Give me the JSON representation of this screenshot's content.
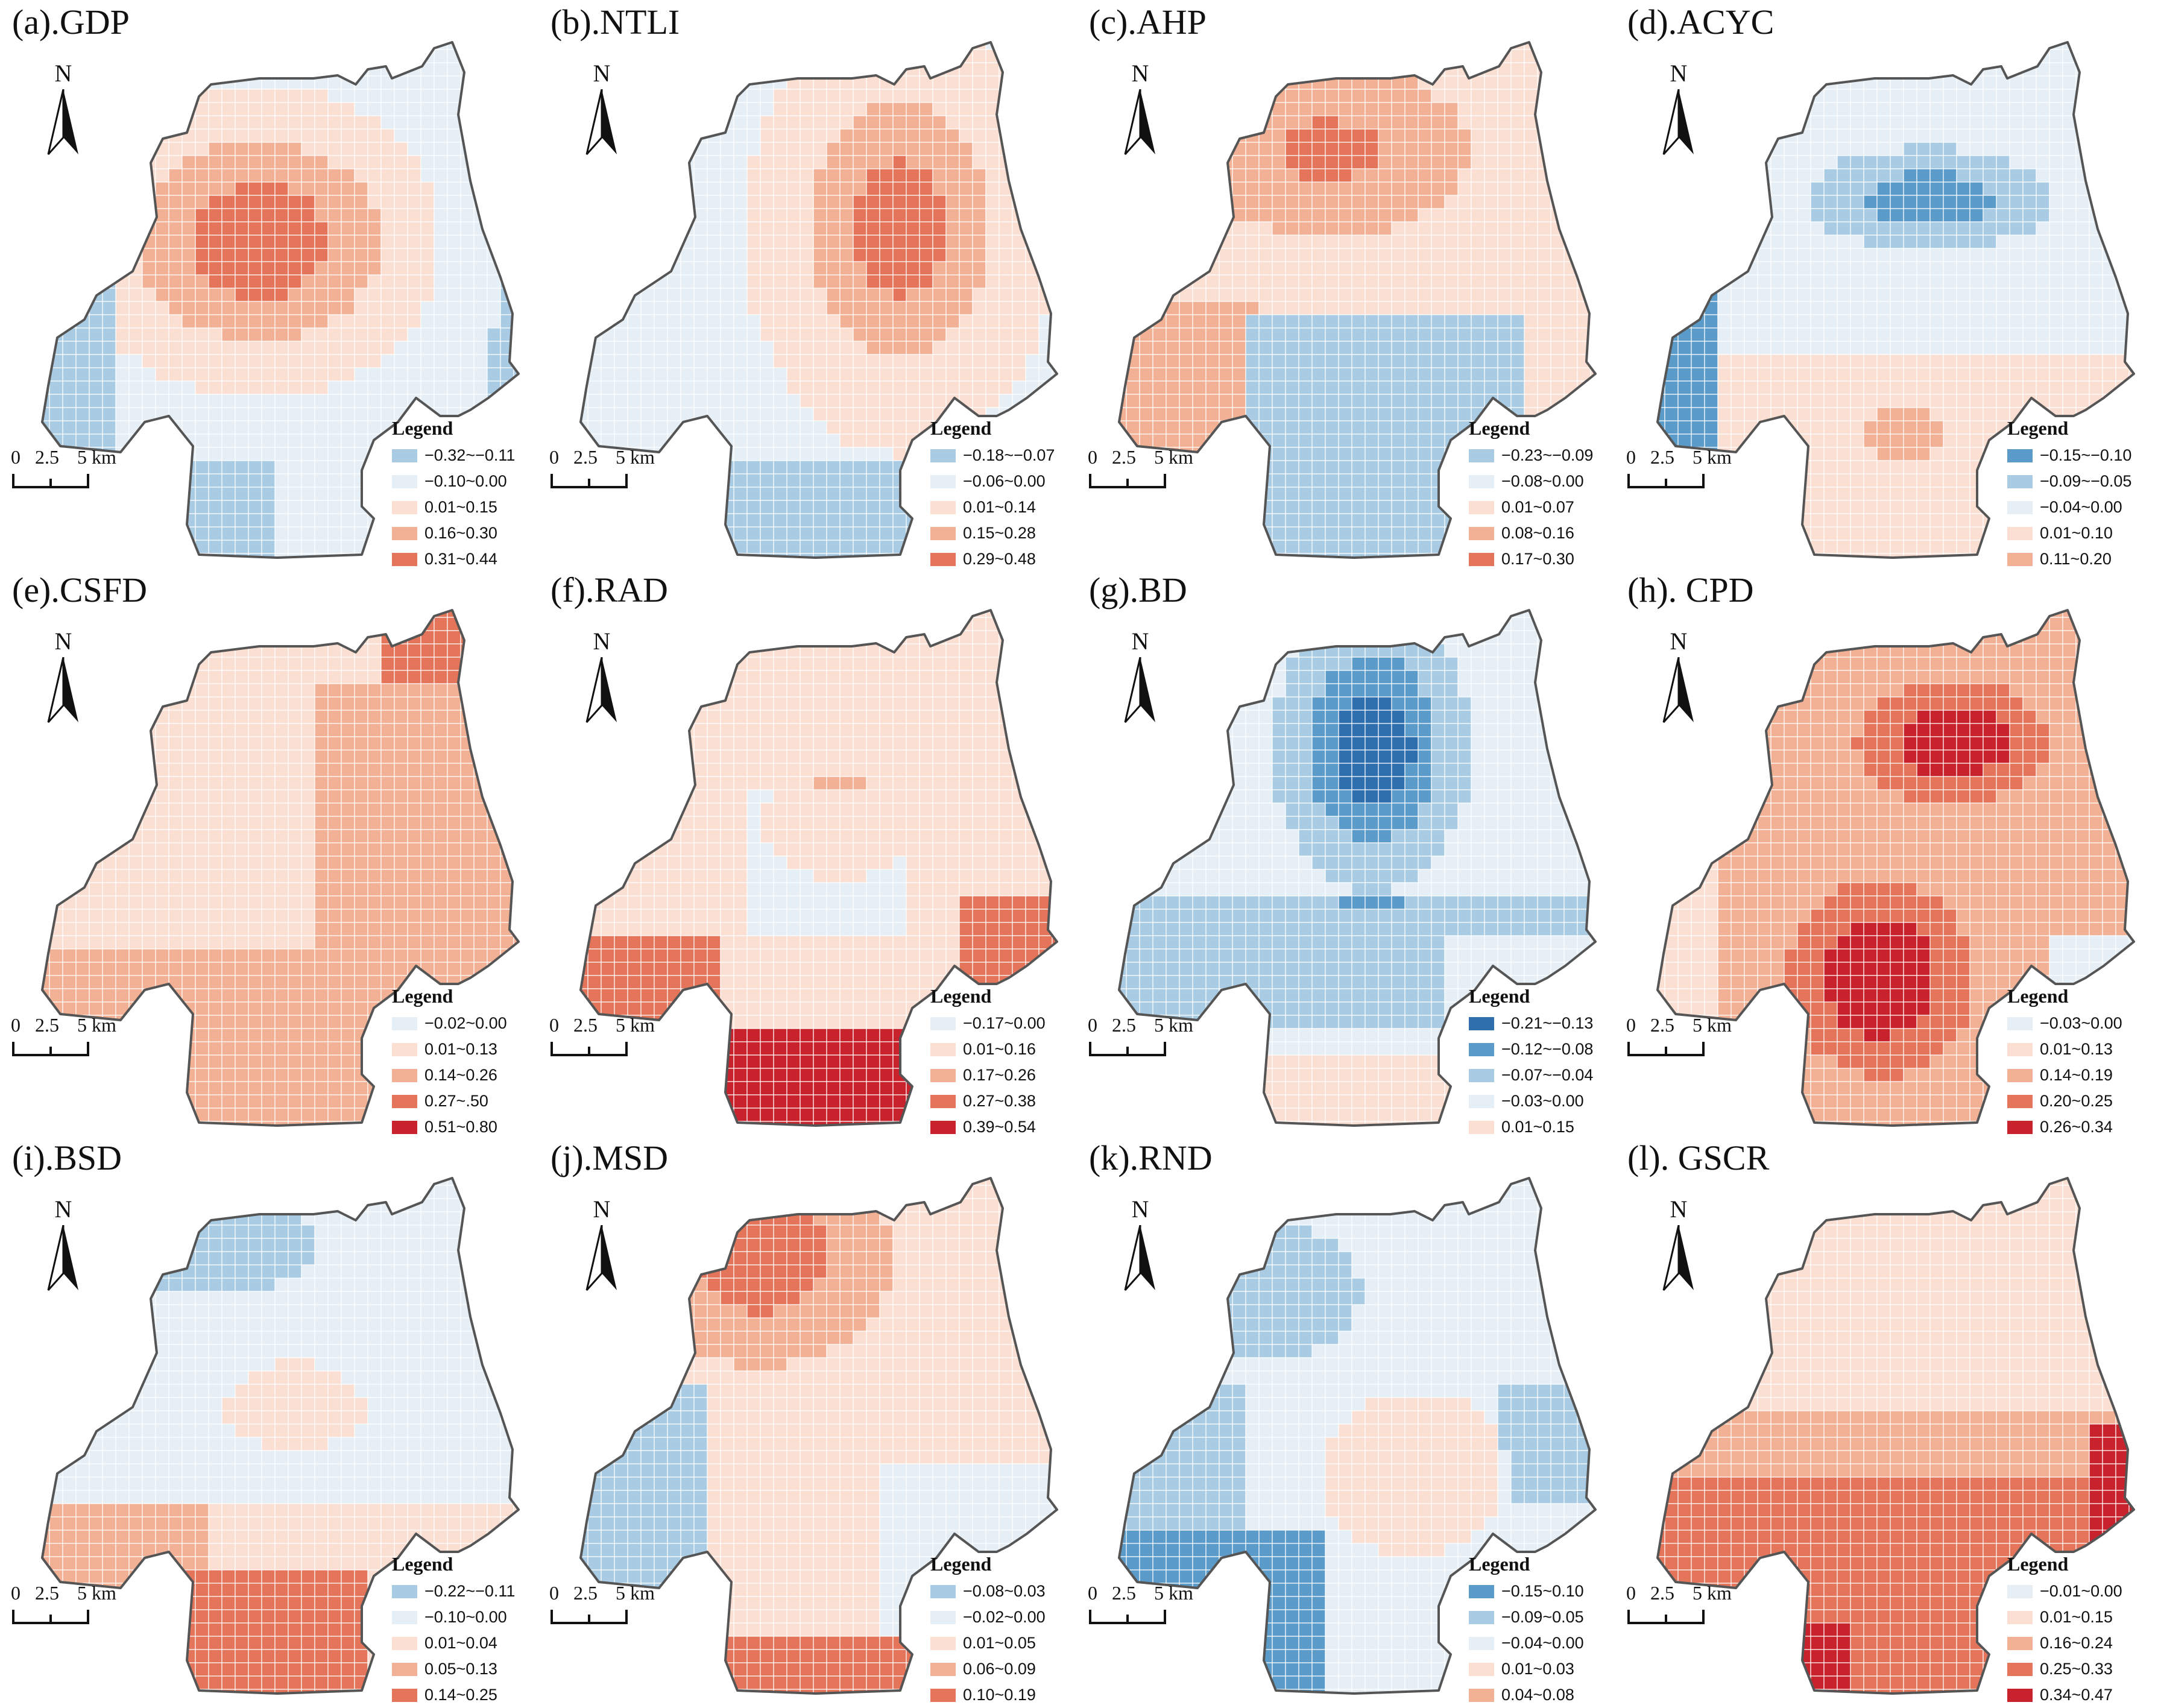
{
  "colors": {
    "outline": "#555555",
    "grid_line": "#ffffff",
    "palette_blue_to_red": [
      "#2f6fae",
      "#5a9bc9",
      "#a9cbe3",
      "#e6eff6",
      "#fbdfd3",
      "#f2b095",
      "#e4745a",
      "#c8232c"
    ]
  },
  "scale_bar": {
    "labels": [
      "0",
      "2.5",
      "5 km"
    ]
  },
  "north_label": "N",
  "legend_title": "Legend",
  "panels": [
    {
      "title": "(a).GDP",
      "pattern": "gdp",
      "legend": [
        {
          "label": "−0.32~−0.11",
          "color": "#a9cbe3"
        },
        {
          "label": "−0.10~0.00",
          "color": "#e6eff6"
        },
        {
          "label": "0.01~0.15",
          "color": "#fbdfd3"
        },
        {
          "label": "0.16~0.30",
          "color": "#f2b095"
        },
        {
          "label": "0.31~0.44",
          "color": "#e4745a"
        }
      ]
    },
    {
      "title": "(b).NTLI",
      "pattern": "ntli",
      "legend": [
        {
          "label": "−0.18~−0.07",
          "color": "#a9cbe3"
        },
        {
          "label": "−0.06~0.00",
          "color": "#e6eff6"
        },
        {
          "label": "0.01~0.14",
          "color": "#fbdfd3"
        },
        {
          "label": "0.15~0.28",
          "color": "#f2b095"
        },
        {
          "label": "0.29~0.48",
          "color": "#e4745a"
        }
      ]
    },
    {
      "title": "(c).AHP",
      "pattern": "ahp",
      "legend": [
        {
          "label": "−0.23~−0.09",
          "color": "#a9cbe3"
        },
        {
          "label": "−0.08~0.00",
          "color": "#e6eff6"
        },
        {
          "label": "0.01~0.07",
          "color": "#fbdfd3"
        },
        {
          "label": "0.08~0.16",
          "color": "#f2b095"
        },
        {
          "label": "0.17~0.30",
          "color": "#e4745a"
        }
      ]
    },
    {
      "title": "(d).ACYC",
      "pattern": "acyc",
      "legend": [
        {
          "label": "−0.15~−0.10",
          "color": "#5a9bc9"
        },
        {
          "label": "−0.09~−0.05",
          "color": "#a9cbe3"
        },
        {
          "label": "−0.04~0.00",
          "color": "#e6eff6"
        },
        {
          "label": "0.01~0.10",
          "color": "#fbdfd3"
        },
        {
          "label": "0.11~0.20",
          "color": "#f2b095"
        }
      ]
    },
    {
      "title": "(e).CSFD",
      "pattern": "csfd",
      "legend": [
        {
          "label": "−0.02~0.00",
          "color": "#e6eff6"
        },
        {
          "label": "0.01~0.13",
          "color": "#fbdfd3"
        },
        {
          "label": "0.14~0.26",
          "color": "#f2b095"
        },
        {
          "label": "0.27~.50",
          "color": "#e4745a"
        },
        {
          "label": "0.51~0.80",
          "color": "#c8232c"
        }
      ]
    },
    {
      "title": "(f).RAD",
      "pattern": "rad",
      "legend": [
        {
          "label": "−0.17~0.00",
          "color": "#e6eff6"
        },
        {
          "label": "0.01~0.16",
          "color": "#fbdfd3"
        },
        {
          "label": "0.17~0.26",
          "color": "#f2b095"
        },
        {
          "label": "0.27~0.38",
          "color": "#e4745a"
        },
        {
          "label": "0.39~0.54",
          "color": "#c8232c"
        }
      ]
    },
    {
      "title": "(g).BD",
      "pattern": "bd",
      "legend": [
        {
          "label": "−0.21~−0.13",
          "color": "#2f6fae"
        },
        {
          "label": "−0.12~−0.08",
          "color": "#5a9bc9"
        },
        {
          "label": "−0.07~−0.04",
          "color": "#a9cbe3"
        },
        {
          "label": "−0.03~0.00",
          "color": "#e6eff6"
        },
        {
          "label": "0.01~0.15",
          "color": "#fbdfd3"
        }
      ]
    },
    {
      "title": "(h). CPD",
      "pattern": "cpd",
      "legend": [
        {
          "label": "−0.03~0.00",
          "color": "#e6eff6"
        },
        {
          "label": "0.01~0.13",
          "color": "#fbdfd3"
        },
        {
          "label": "0.14~0.19",
          "color": "#f2b095"
        },
        {
          "label": "0.20~0.25",
          "color": "#e4745a"
        },
        {
          "label": "0.26~0.34",
          "color": "#c8232c"
        }
      ]
    },
    {
      "title": "(i).BSD",
      "pattern": "bsd",
      "legend": [
        {
          "label": "−0.22~−0.11",
          "color": "#a9cbe3"
        },
        {
          "label": "−0.10~0.00",
          "color": "#e6eff6"
        },
        {
          "label": "0.01~0.04",
          "color": "#fbdfd3"
        },
        {
          "label": "0.05~0.13",
          "color": "#f2b095"
        },
        {
          "label": "0.14~0.25",
          "color": "#e4745a"
        }
      ]
    },
    {
      "title": "(j).MSD",
      "pattern": "msd",
      "legend": [
        {
          "label": "−0.08~0.03",
          "color": "#a9cbe3"
        },
        {
          "label": "−0.02~0.00",
          "color": "#e6eff6"
        },
        {
          "label": "0.01~0.05",
          "color": "#fbdfd3"
        },
        {
          "label": "0.06~0.09",
          "color": "#f2b095"
        },
        {
          "label": "0.10~0.19",
          "color": "#e4745a"
        }
      ]
    },
    {
      "title": "(k).RND",
      "pattern": "rnd",
      "legend": [
        {
          "label": "−0.15~0.10",
          "color": "#5a9bc9"
        },
        {
          "label": "−0.09~0.05",
          "color": "#a9cbe3"
        },
        {
          "label": "−0.04~0.00",
          "color": "#e6eff6"
        },
        {
          "label": "0.01~0.03",
          "color": "#fbdfd3"
        },
        {
          "label": "0.04~0.08",
          "color": "#f2b095"
        }
      ]
    },
    {
      "title": "(l). GSCR",
      "pattern": "gscr",
      "legend": [
        {
          "label": "−0.01~0.00",
          "color": "#e6eff6"
        },
        {
          "label": "0.01~0.15",
          "color": "#fbdfd3"
        },
        {
          "label": "0.16~0.24",
          "color": "#f2b095"
        },
        {
          "label": "0.25~0.33",
          "color": "#e4745a"
        },
        {
          "label": "0.34~0.47",
          "color": "#c8232c"
        }
      ]
    }
  ]
}
